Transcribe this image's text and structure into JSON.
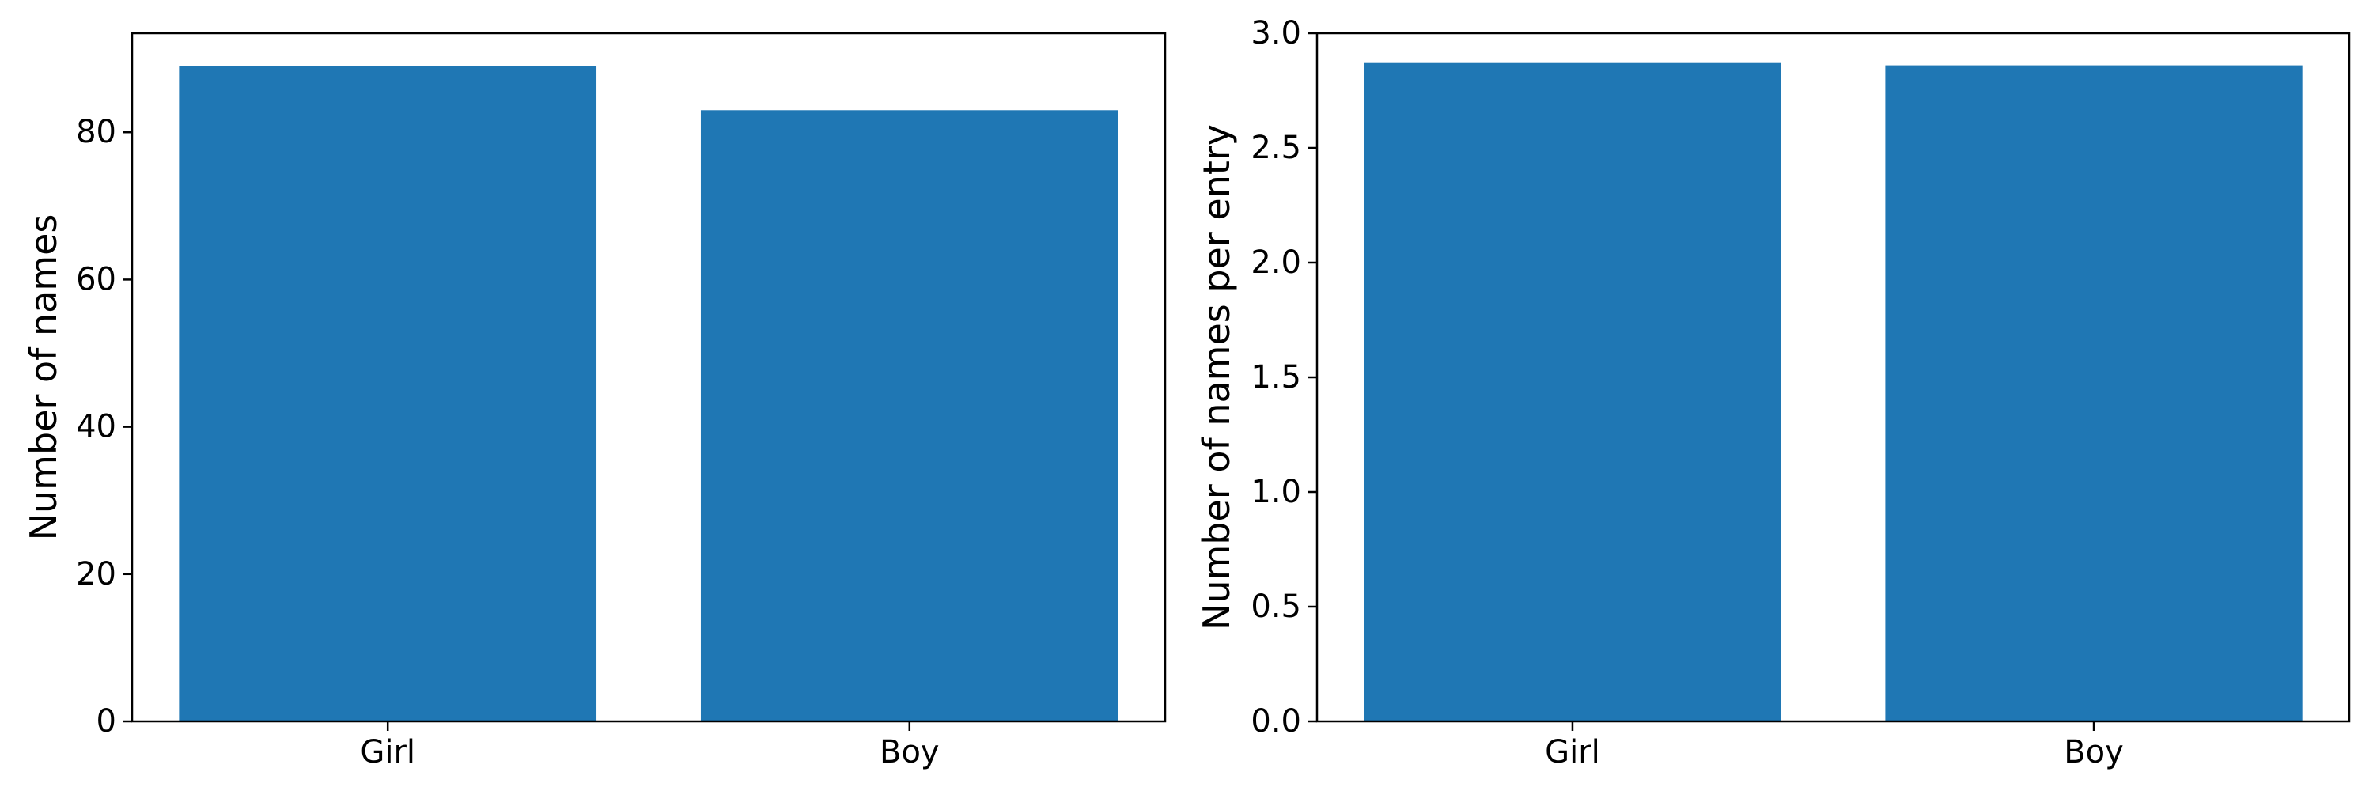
{
  "chart_data": [
    {
      "type": "bar",
      "categories": [
        "Girl",
        "Boy"
      ],
      "values": [
        89,
        83
      ],
      "xlabel": "",
      "ylabel": "Number of names",
      "ylim": [
        0,
        93.45
      ],
      "yticks": [
        0,
        20,
        40,
        60,
        80
      ],
      "ytick_labels": [
        "0",
        "20",
        "40",
        "60",
        "80"
      ],
      "grid": false,
      "color": "#1f77b4"
    },
    {
      "type": "bar",
      "categories": [
        "Girl",
        "Boy"
      ],
      "values": [
        2.87,
        2.86
      ],
      "xlabel": "",
      "ylabel": "Number of names per entry",
      "ylim": [
        0,
        3.0
      ],
      "yticks": [
        0.0,
        0.5,
        1.0,
        1.5,
        2.0,
        2.5,
        3.0
      ],
      "ytick_labels": [
        "0.0",
        "0.5",
        "1.0",
        "1.5",
        "2.0",
        "2.5",
        "3.0"
      ],
      "grid": false,
      "color": "#1f77b4"
    }
  ]
}
